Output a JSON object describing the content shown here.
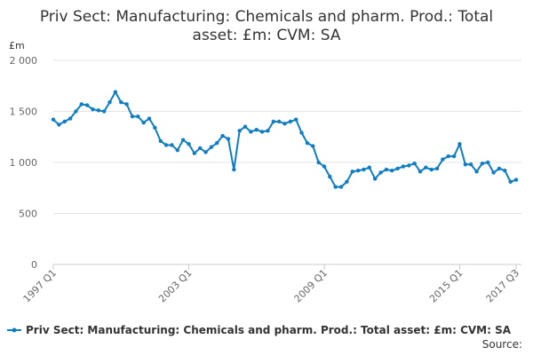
{
  "chart_data": {
    "type": "line",
    "title": "Priv Sect: Manufacturing: Chemicals and pharm. Prod.: Total asset: £m: CVM: SA",
    "y_label": "£m",
    "source": "Source:",
    "categories": [
      "1997 Q1",
      null,
      null,
      null,
      null,
      null,
      null,
      null,
      null,
      null,
      null,
      null,
      null,
      null,
      null,
      null,
      null,
      null,
      null,
      null,
      null,
      null,
      null,
      null,
      "2003 Q1",
      null,
      null,
      null,
      null,
      null,
      null,
      null,
      null,
      null,
      null,
      null,
      null,
      null,
      null,
      null,
      null,
      null,
      null,
      null,
      null,
      null,
      null,
      null,
      "2009 Q1",
      null,
      null,
      null,
      null,
      null,
      null,
      null,
      null,
      null,
      null,
      null,
      null,
      null,
      null,
      null,
      null,
      null,
      null,
      null,
      null,
      null,
      null,
      null,
      "2015 Q1",
      null,
      null,
      null,
      null,
      null,
      null,
      null,
      null,
      null,
      "2017 Q3"
    ],
    "series": [
      {
        "name": "Priv Sect: Manufacturing: Chemicals and pharm. Prod.: Total asset: £m: CVM: SA",
        "color": "#0f7dc2",
        "values": [
          1420,
          1370,
          1400,
          1430,
          1500,
          1570,
          1560,
          1520,
          1510,
          1500,
          1590,
          1690,
          1590,
          1570,
          1450,
          1450,
          1390,
          1430,
          1340,
          1210,
          1170,
          1170,
          1120,
          1220,
          1180,
          1090,
          1140,
          1100,
          1150,
          1190,
          1260,
          1230,
          930,
          1310,
          1350,
          1300,
          1320,
          1300,
          1310,
          1400,
          1400,
          1380,
          1400,
          1420,
          1290,
          1190,
          1160,
          1000,
          960,
          860,
          760,
          760,
          810,
          910,
          920,
          930,
          950,
          840,
          900,
          930,
          920,
          940,
          960,
          970,
          990,
          910,
          950,
          930,
          940,
          1030,
          1060,
          1060,
          1180,
          980,
          980,
          910,
          990,
          1000,
          900,
          940,
          920,
          810,
          830
        ]
      }
    ],
    "ylim": [
      0,
      2000
    ],
    "yticks": [
      0,
      500,
      {
        "value": 1000,
        "label": "1 000"
      },
      {
        "value": 1500,
        "label": "1 500"
      },
      {
        "value": 2000,
        "label": "2 000"
      }
    ],
    "grid": true,
    "legend": "bottom"
  }
}
